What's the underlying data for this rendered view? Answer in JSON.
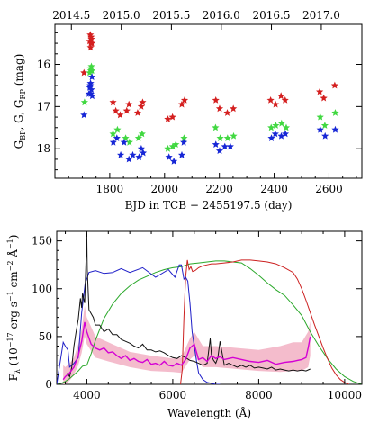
{
  "chart_data": [
    {
      "type": "scatter",
      "xlabel": "BJD in TCB − 2455197.5 (day)",
      "ylabel": "G_BP, G, G_RP (mag)",
      "ylabel_parts": [
        "G",
        "BP",
        ", G, G",
        "RP",
        " (mag)"
      ],
      "xlim": [
        1600,
        2720
      ],
      "ylim": [
        18.7,
        15.05
      ],
      "xticks": [
        1800,
        2000,
        2200,
        2400,
        2600
      ],
      "yticks": [
        16,
        17,
        18
      ],
      "top_axis_ticks": [
        "2014.5",
        "2015.0",
        "2015.5",
        "2016.0",
        "2016.5",
        "2017.0"
      ],
      "top_axis_positions": [
        1660,
        1842,
        2025,
        2207,
        2390,
        2572
      ],
      "marker": "star",
      "series": [
        {
          "color": "#d41f1f",
          "x": [
            1706,
            1727,
            1729,
            1730,
            1731,
            1732,
            1733,
            1735,
            1812,
            1822,
            1838,
            1862,
            1870,
            1902,
            1915,
            1920,
            2012,
            2029,
            2063,
            2073,
            2187,
            2201,
            2229,
            2251,
            2387,
            2405,
            2425,
            2440,
            2566,
            2581,
            2621
          ],
          "y": [
            16.2,
            15.45,
            15.3,
            15.6,
            15.5,
            15.35,
            15.4,
            15.5,
            16.9,
            17.1,
            17.2,
            17.1,
            16.95,
            17.15,
            17.0,
            16.9,
            17.3,
            17.25,
            16.95,
            16.85,
            16.85,
            17.05,
            17.15,
            17.05,
            16.85,
            16.95,
            16.75,
            16.85,
            16.65,
            16.8,
            16.5
          ]
        },
        {
          "color": "#41d841",
          "x": [
            1708,
            1727,
            1730,
            1731,
            1733,
            1735,
            1812,
            1828,
            1858,
            1872,
            1905,
            1918,
            2012,
            2030,
            2041,
            2071,
            2186,
            2203,
            2230,
            2252,
            2389,
            2406,
            2427,
            2444,
            2568,
            2585,
            2623
          ],
          "y": [
            16.9,
            16.2,
            16.1,
            16.15,
            16.05,
            16.15,
            17.65,
            17.55,
            17.75,
            17.85,
            17.75,
            17.65,
            18.0,
            17.95,
            17.9,
            17.75,
            17.5,
            17.75,
            17.75,
            17.7,
            17.5,
            17.45,
            17.4,
            17.5,
            17.25,
            17.45,
            17.15
          ]
        },
        {
          "color": "#1727d6",
          "x": [
            1706,
            1724,
            1727,
            1729,
            1730,
            1731,
            1733,
            1735,
            1736,
            1813,
            1826,
            1840,
            1852,
            1870,
            1884,
            1907,
            1915,
            1922,
            2016,
            2034,
            2063,
            2070,
            2187,
            2201,
            2220,
            2240,
            2390,
            2404,
            2426,
            2441,
            2568,
            2586,
            2623
          ],
          "y": [
            17.2,
            16.7,
            16.55,
            16.5,
            16.45,
            16.7,
            16.6,
            16.3,
            16.75,
            17.85,
            17.75,
            18.15,
            17.85,
            18.25,
            18.15,
            18.2,
            18.0,
            18.1,
            18.2,
            18.3,
            18.15,
            17.85,
            17.9,
            18.05,
            17.95,
            17.95,
            17.75,
            17.65,
            17.7,
            17.65,
            17.55,
            17.7,
            17.55
          ]
        }
      ]
    },
    {
      "type": "line",
      "xlabel": "Wavelength (Å)",
      "ylabel": "F_λ (10^-17 erg s^-1 cm^-2 Å^-1)",
      "ylabel_parts": [
        "F",
        "λ",
        " (10",
        "−17",
        " erg s",
        "−1",
        " cm",
        "−2",
        " Å",
        "−1",
        ")"
      ],
      "xlim": [
        3300,
        10400
      ],
      "ylim": [
        0,
        160
      ],
      "xticks": [
        4000,
        6000,
        8000,
        10000
      ],
      "yticks": [
        0,
        50,
        100,
        150
      ],
      "series": [
        {
          "color": "#1f1fc8",
          "x": [
            3300,
            3450,
            3500,
            3560,
            3600,
            3700,
            3800,
            3880,
            3960,
            4050,
            4200,
            4400,
            4600,
            4800,
            5000,
            5300,
            5600,
            5900,
            6050,
            6150,
            6200,
            6260,
            6300,
            6350,
            6400,
            6450,
            6500,
            6550,
            6600,
            6700,
            6800,
            6900,
            7000,
            7100
          ],
          "y": [
            0,
            44,
            40,
            36,
            18,
            22,
            28,
            75,
            105,
            117,
            119,
            116,
            117,
            121,
            117,
            122,
            112,
            120,
            112,
            125,
            125,
            110,
            112,
            108,
            85,
            55,
            40,
            25,
            12,
            5,
            2,
            1,
            0,
            0
          ]
        },
        {
          "color": "#2aa82a",
          "x": [
            3300,
            3400,
            3500,
            3600,
            3700,
            3800,
            3900,
            4000,
            4100,
            4200,
            4400,
            4600,
            4800,
            5000,
            5200,
            5400,
            5600,
            5800,
            6000,
            6200,
            6400,
            6600,
            6800,
            7000,
            7200,
            7400,
            7600,
            7800,
            8000,
            8200,
            8400,
            8600,
            8800,
            9000,
            9200,
            9400,
            9600,
            9800,
            10000,
            10200,
            10400
          ],
          "y": [
            0,
            1,
            3,
            6,
            10,
            14,
            19,
            20,
            32,
            46,
            69,
            84,
            95,
            103,
            109,
            113,
            117,
            120,
            122,
            123,
            126,
            127,
            128,
            129,
            129,
            128,
            127,
            121,
            114,
            106,
            99,
            93,
            83,
            72,
            55,
            40,
            27,
            16,
            8,
            3,
            0
          ]
        },
        {
          "color": "#cc2020",
          "x": [
            6180,
            6220,
            6260,
            6300,
            6340,
            6380,
            6420,
            6460,
            6520,
            6600,
            6700,
            6800,
            6900,
            7000,
            7200,
            7400,
            7600,
            7800,
            8000,
            8200,
            8400,
            8600,
            8800,
            8900,
            9000,
            9100,
            9200,
            9300,
            9400,
            9500,
            9600,
            9700,
            9800,
            9900,
            10000,
            10100
          ],
          "y": [
            0,
            15,
            70,
            112,
            130,
            120,
            123,
            118,
            119,
            122,
            124,
            125,
            126,
            126,
            127,
            128,
            130,
            130,
            129,
            128,
            126,
            122,
            117,
            110,
            100,
            88,
            75,
            62,
            50,
            38,
            27,
            17,
            10,
            5,
            2,
            0
          ]
        },
        {
          "color": "#d400d4",
          "x": [
            3450,
            3500,
            3600,
            3700,
            3800,
            3880,
            3950,
            4000,
            4100,
            4200,
            4300,
            4400,
            4500,
            4600,
            4700,
            4800,
            4900,
            5000,
            5100,
            5200,
            5300,
            5400,
            5500,
            5600,
            5700,
            5800,
            5900,
            6000,
            6100,
            6200,
            6300,
            6400,
            6500,
            6600,
            6700,
            6800,
            6900,
            7000,
            7100,
            7200,
            7400,
            7600,
            7800,
            8000,
            8200,
            8400,
            8600,
            8800,
            8900,
            9000,
            9100,
            9150,
            9200
          ],
          "y": [
            5,
            8,
            12,
            18,
            30,
            45,
            65,
            55,
            42,
            38,
            36,
            38,
            33,
            34,
            30,
            27,
            30,
            25,
            27,
            24,
            23,
            26,
            21,
            22,
            20,
            24,
            20,
            19,
            22,
            20,
            26,
            38,
            42,
            26,
            28,
            24,
            30,
            27,
            29,
            26,
            28,
            26,
            24,
            23,
            25,
            21,
            23,
            24,
            25,
            26,
            28,
            38,
            50
          ]
        },
        {
          "color": "#111111",
          "x": [
            3550,
            3600,
            3650,
            3700,
            3750,
            3800,
            3850,
            3880,
            3900,
            3950,
            3990,
            4000,
            4010,
            4050,
            4100,
            4150,
            4200,
            4300,
            4400,
            4500,
            4600,
            4700,
            4800,
            4900,
            5000,
            5100,
            5200,
            5300,
            5400,
            5500,
            5600,
            5700,
            5800,
            5900,
            6000,
            6100,
            6200,
            6300,
            6400,
            6500,
            6600,
            6700,
            6800,
            6870,
            6900,
            6950,
            7000,
            7050,
            7100,
            7200,
            7300,
            7400,
            7500,
            7600,
            7700,
            7800,
            7900,
            8000,
            8100,
            8200,
            8300,
            8400,
            8500,
            8600,
            8700,
            8800,
            8900,
            9000,
            9100,
            9200
          ],
          "y": [
            12,
            8,
            18,
            40,
            55,
            68,
            90,
            80,
            95,
            85,
            140,
            158,
            120,
            78,
            74,
            70,
            62,
            62,
            55,
            58,
            52,
            52,
            47,
            45,
            43,
            40,
            38,
            42,
            36,
            36,
            34,
            35,
            33,
            30,
            28,
            27,
            30,
            28,
            25,
            24,
            22,
            20,
            22,
            48,
            30,
            25,
            22,
            28,
            45,
            20,
            22,
            20,
            18,
            20,
            18,
            20,
            17,
            18,
            17,
            16,
            18,
            15,
            16,
            15,
            14,
            15,
            14,
            15,
            14,
            16
          ]
        },
        {
          "color": "#f3b5c7",
          "fill": true,
          "x": [
            3450,
            3500,
            3600,
            3700,
            3800,
            3880,
            3950,
            4000,
            4200,
            4500,
            5000,
            5500,
            6000,
            6200,
            6400,
            6500,
            6700,
            7000,
            7500,
            8000,
            8500,
            8800,
            9000,
            9150,
            9200
          ],
          "y_low": [
            0,
            0,
            4,
            10,
            20,
            33,
            50,
            42,
            28,
            24,
            18,
            14,
            13,
            12,
            26,
            30,
            18,
            18,
            16,
            14,
            13,
            14,
            14,
            18,
            30
          ],
          "y_high": [
            20,
            18,
            22,
            28,
            42,
            58,
            82,
            70,
            50,
            44,
            34,
            30,
            27,
            28,
            48,
            55,
            40,
            40,
            38,
            36,
            40,
            44,
            44,
            55,
            66
          ]
        }
      ]
    }
  ]
}
